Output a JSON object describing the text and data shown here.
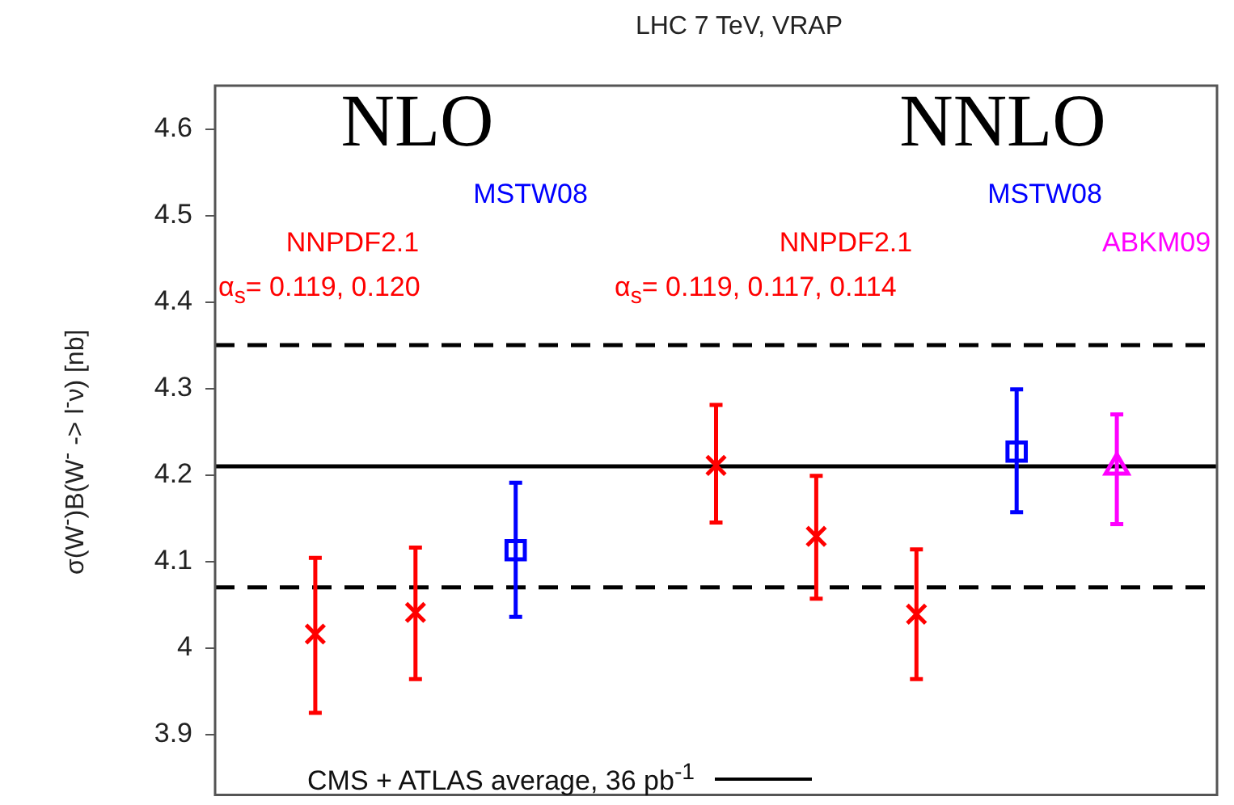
{
  "chart_data": {
    "type": "scatter",
    "title": "LHC 7 TeV, VRAP",
    "ylabel": "σ(W$^{-}$)B(W$^{-}$ -> l$^{-}$ν) [nb]",
    "annotations": [
      "NLO",
      "NNLO",
      "MSTW08",
      "NNPDF2.1",
      "α$_{s}$= 0.119, 0.120",
      "MSTW08",
      "NNPDF2.1",
      "α$_{s}$= 0.119, 0.117, 0.114",
      "ABKM09"
    ],
    "categories": [
      null,
      null,
      null,
      null,
      null,
      null,
      null,
      null,
      null,
      null,
      null
    ],
    "series": [
      {
        "color": "#ff0000",
        "marker": "cross",
        "values": [
          null,
          4.016,
          4.041,
          null,
          null,
          4.211,
          4.129,
          4.039,
          null,
          null,
          null
        ],
        "errors": [
          null,
          [
            3.925,
            4.104
          ],
          [
            3.964,
            4.116
          ],
          null,
          null,
          [
            4.145,
            4.281
          ],
          [
            4.057,
            4.199
          ],
          [
            3.964,
            4.114
          ],
          null,
          null,
          null
        ]
      },
      {
        "color": "#0000ff",
        "marker": "square",
        "values": [
          null,
          null,
          null,
          4.113,
          null,
          null,
          null,
          null,
          4.227,
          null,
          null
        ],
        "errors": [
          null,
          null,
          null,
          [
            4.036,
            4.191
          ],
          null,
          null,
          null,
          null,
          [
            4.157,
            4.299
          ],
          null,
          null
        ]
      },
      {
        "color": "#ff00ff",
        "marker": "triangle",
        "values": [
          null,
          null,
          null,
          null,
          null,
          null,
          null,
          null,
          null,
          4.209,
          null
        ],
        "errors": [
          null,
          null,
          null,
          null,
          null,
          null,
          null,
          null,
          null,
          [
            4.143,
            4.27
          ],
          null
        ]
      }
    ],
    "ref_lines": [
      {
        "axis": "y",
        "value": 4.35,
        "line_style": "dashed",
        "color": "#000000"
      },
      {
        "axis": "y",
        "value": 4.21,
        "line_style": "solid",
        "color": "#000000",
        "label": "CMS + ATLAS average, 36 pb$^{-1}$"
      },
      {
        "axis": "y",
        "value": 4.07,
        "line_style": "dashed",
        "color": "#000000"
      }
    ],
    "ylim": [
      3.83,
      4.65
    ],
    "yticks": [
      3.9,
      4,
      4.1,
      4.2,
      4.3,
      4.4,
      4.5,
      4.6
    ],
    "grid": false,
    "tick_labels": "y"
  }
}
